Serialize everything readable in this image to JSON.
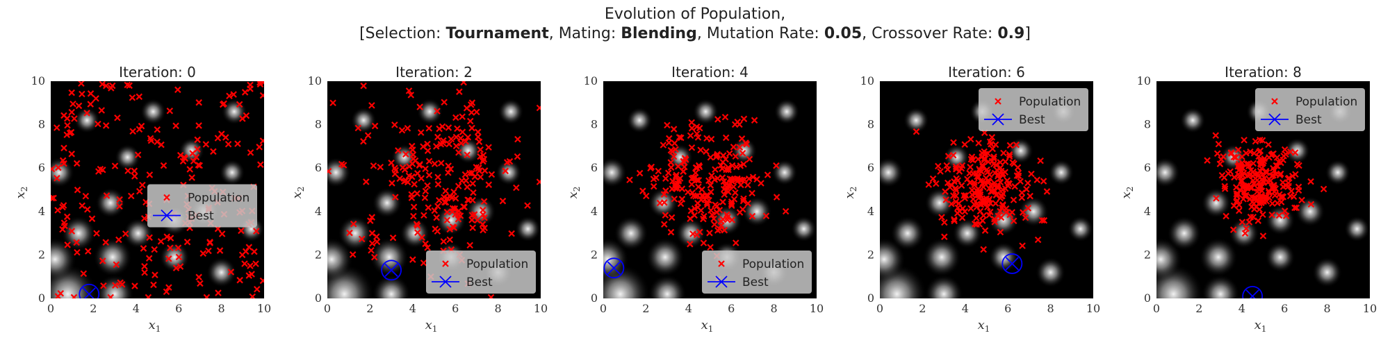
{
  "figure": {
    "title_line1": "Evolution of Population,",
    "title_line2_parts": [
      {
        "text": "[Selection: ",
        "bold": false
      },
      {
        "text": "Tournament",
        "bold": true
      },
      {
        "text": ", Mating: ",
        "bold": false
      },
      {
        "text": "Blending",
        "bold": true
      },
      {
        "text": ", Mutation Rate: ",
        "bold": false
      },
      {
        "text": "0.05",
        "bold": true
      },
      {
        "text": ", Crossover Rate: ",
        "bold": false
      },
      {
        "text": "0.9",
        "bold": true
      },
      {
        "text": "]",
        "bold": false
      }
    ]
  },
  "colors": {
    "population": "#ff0000",
    "best": "#0000ff",
    "background": "#000000",
    "legend_bg": "#c8c8c8"
  },
  "chart_data": [
    {
      "type": "scatter",
      "title": "Iteration: 0",
      "xlabel": "x",
      "xlabel_sub": "1",
      "ylabel": "x",
      "ylabel_sub": "2",
      "xlim": [
        0,
        10
      ],
      "ylim": [
        0,
        10
      ],
      "xticks": [
        "0",
        "2",
        "4",
        "6",
        "8",
        "10"
      ],
      "yticks": [
        "0",
        "2",
        "4",
        "6",
        "8",
        "10"
      ],
      "legend_position": "center-right",
      "series": [
        {
          "name": "Population",
          "marker": "x",
          "spread": "uniform",
          "center": [
            5,
            5
          ],
          "sd": 0,
          "count": 220
        },
        {
          "name": "Best",
          "marker": "circle-x",
          "x": [
            1.8
          ],
          "y": [
            0.2
          ]
        }
      ]
    },
    {
      "type": "scatter",
      "title": "Iteration: 2",
      "xlabel": "x",
      "xlabel_sub": "1",
      "ylabel": "x",
      "ylabel_sub": "2",
      "xlim": [
        0,
        10
      ],
      "ylim": [
        0,
        10
      ],
      "xticks": [
        "0",
        "2",
        "4",
        "6",
        "8",
        "10"
      ],
      "yticks": [
        "0",
        "2",
        "4",
        "6",
        "8",
        "10"
      ],
      "legend_position": "lower-right",
      "series": [
        {
          "name": "Population",
          "marker": "x",
          "spread": "normal",
          "center": [
            5.3,
            5.6
          ],
          "sd": 1.9,
          "count": 220
        },
        {
          "name": "Best",
          "marker": "circle-x",
          "x": [
            3.0
          ],
          "y": [
            1.3
          ]
        }
      ]
    },
    {
      "type": "scatter",
      "title": "Iteration: 4",
      "xlabel": "x",
      "xlabel_sub": "1",
      "ylabel": "x",
      "ylabel_sub": "2",
      "xlim": [
        0,
        10
      ],
      "ylim": [
        0,
        10
      ],
      "xticks": [
        "0",
        "2",
        "4",
        "6",
        "8",
        "10"
      ],
      "yticks": [
        "0",
        "2",
        "4",
        "6",
        "8",
        "10"
      ],
      "legend_position": "lower-right",
      "series": [
        {
          "name": "Population",
          "marker": "x",
          "spread": "normal",
          "center": [
            5.0,
            5.4
          ],
          "sd": 1.4,
          "count": 220
        },
        {
          "name": "Best",
          "marker": "circle-x",
          "x": [
            0.5
          ],
          "y": [
            1.4
          ]
        }
      ]
    },
    {
      "type": "scatter",
      "title": "Iteration: 6",
      "xlabel": "x",
      "xlabel_sub": "1",
      "ylabel": "x",
      "ylabel_sub": "2",
      "xlim": [
        0,
        10
      ],
      "ylim": [
        0,
        10
      ],
      "xticks": [
        "0",
        "2",
        "4",
        "6",
        "8",
        "10"
      ],
      "yticks": [
        "0",
        "2",
        "4",
        "6",
        "8",
        "10"
      ],
      "legend_position": "upper-right",
      "series": [
        {
          "name": "Population",
          "marker": "x",
          "spread": "normal",
          "center": [
            5.0,
            5.2
          ],
          "sd": 1.15,
          "count": 220
        },
        {
          "name": "Best",
          "marker": "circle-x",
          "x": [
            6.2
          ],
          "y": [
            1.6
          ]
        }
      ]
    },
    {
      "type": "scatter",
      "title": "Iteration: 8",
      "xlabel": "x",
      "xlabel_sub": "1",
      "ylabel": "x",
      "ylabel_sub": "2",
      "xlim": [
        0,
        10
      ],
      "ylim": [
        0,
        10
      ],
      "xticks": [
        "0",
        "2",
        "4",
        "6",
        "8",
        "10"
      ],
      "yticks": [
        "0",
        "2",
        "4",
        "6",
        "8",
        "10"
      ],
      "legend_position": "upper-right",
      "series": [
        {
          "name": "Population",
          "marker": "x",
          "spread": "normal",
          "center": [
            4.8,
            5.4
          ],
          "sd": 0.9,
          "count": 220
        },
        {
          "name": "Best",
          "marker": "circle-x",
          "x": [
            4.5
          ],
          "y": [
            0.1
          ]
        }
      ]
    }
  ]
}
